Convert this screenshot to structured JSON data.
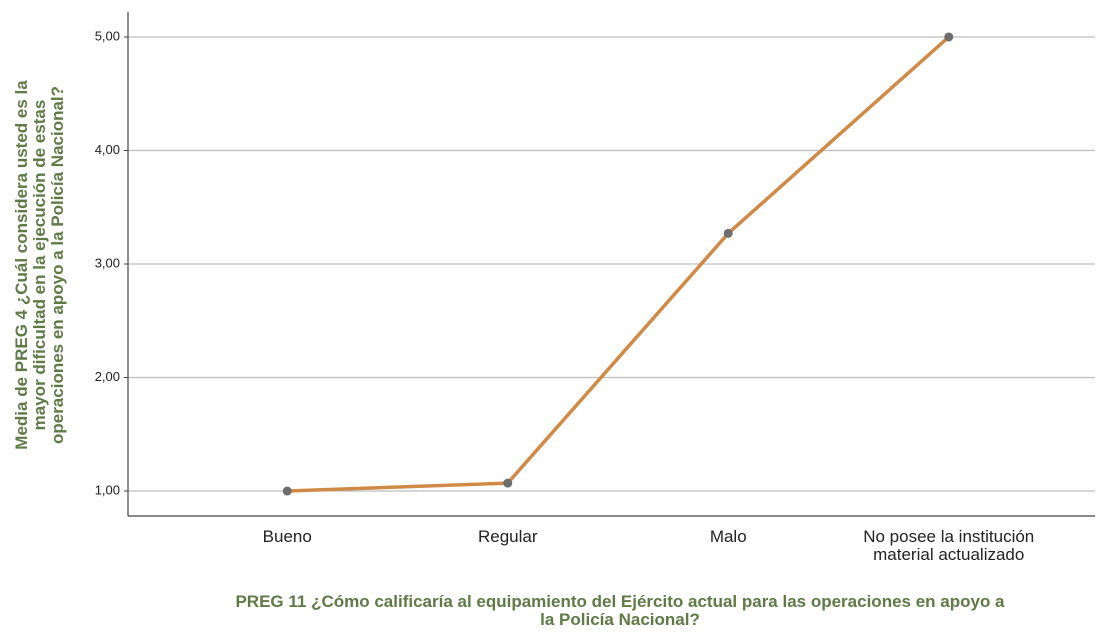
{
  "chart_data": {
    "type": "line",
    "y_label": "Media de PREG 4 ¿Cuál considera usted es la\nmayor dificultad en la ejecución de estas\noperaciones en apoyo a la Policía Nacional?",
    "x_label": "PREG 11 ¿Cómo calificaría al equipamiento del Ejército actual para las operaciones en apoyo a\nla Policía Nacional?",
    "categories": [
      "Bueno",
      "Regular",
      "Malo",
      "No posee la institución\nmaterial actualizado"
    ],
    "values": [
      1.0,
      1.07,
      3.27,
      5.0
    ],
    "color": "#d08a45",
    "marker_color": "#6e6e6e",
    "ylim": [
      0.78,
      5.22
    ],
    "yticks": [
      {
        "value": 1,
        "label": "1,00"
      },
      {
        "value": 2,
        "label": "2,00"
      },
      {
        "value": 3,
        "label": "3,00"
      },
      {
        "value": 4,
        "label": "4,00"
      },
      {
        "value": 5,
        "label": "5,00"
      }
    ],
    "grid": true
  }
}
